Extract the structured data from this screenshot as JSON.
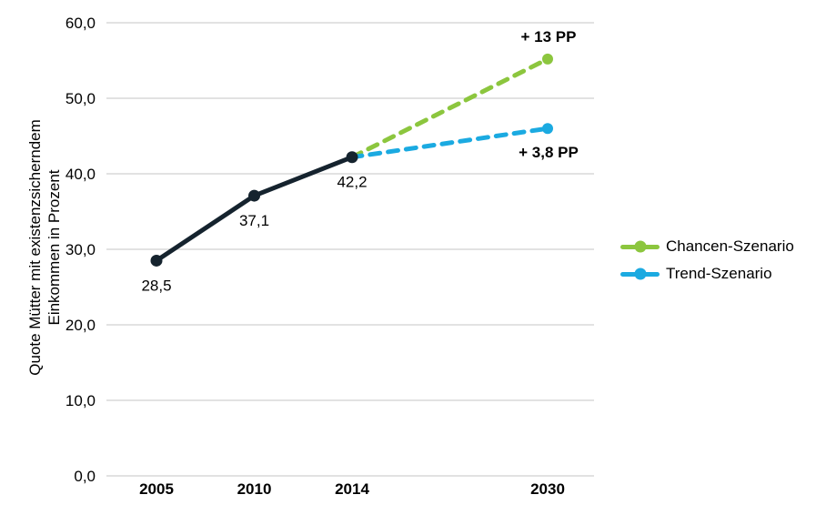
{
  "chart_data": {
    "type": "line",
    "title": "",
    "ylabel_lines": [
      "Quote Mütter mit existenzsicherndem",
      "Einkommen in Prozent"
    ],
    "xlabel": "",
    "x_categories": [
      "2005",
      "2010",
      "2014",
      "2030"
    ],
    "ylim": [
      0,
      60
    ],
    "y_tick_step": 10,
    "y_tick_labels": [
      "0,0",
      "10,0",
      "20,0",
      "30,0",
      "40,0",
      "50,0",
      "60,0"
    ],
    "grid": true,
    "decimal_style": "comma",
    "series": [
      {
        "id": "chancen-szenario",
        "legend_label": "Chancen-Szenario",
        "color": "#8cc63e",
        "style": "dashed",
        "points": [
          {
            "x": "2014",
            "y": 42.2
          },
          {
            "x": "2030",
            "y": 55.2
          }
        ],
        "end_marker": true,
        "annotation": {
          "text": "+ 13 PP",
          "placement": "above-end"
        }
      },
      {
        "id": "trend-szenario",
        "legend_label": "Trend-Szenario",
        "color": "#1baae1",
        "style": "dashed",
        "points": [
          {
            "x": "2014",
            "y": 42.2
          },
          {
            "x": "2030",
            "y": 46.0
          }
        ],
        "end_marker": true,
        "annotation": {
          "text": "+ 3,8 PP",
          "placement": "below-end"
        }
      },
      {
        "id": "historical",
        "legend_label": "",
        "color": "#15232e",
        "style": "solid",
        "points": [
          {
            "x": "2005",
            "y": 28.5,
            "label": "28,5"
          },
          {
            "x": "2010",
            "y": 37.1,
            "label": "37,1"
          },
          {
            "x": "2014",
            "y": 42.2,
            "label": "42,2"
          }
        ],
        "all_markers": true
      }
    ],
    "legend": {
      "position": "right",
      "entries": [
        {
          "label": "Chancen-Szenario",
          "color": "#8cc63e"
        },
        {
          "label": "Trend-Szenario",
          "color": "#1baae1"
        }
      ]
    },
    "colors": {
      "grid": "#d9d9d9",
      "text": "#000000"
    }
  }
}
